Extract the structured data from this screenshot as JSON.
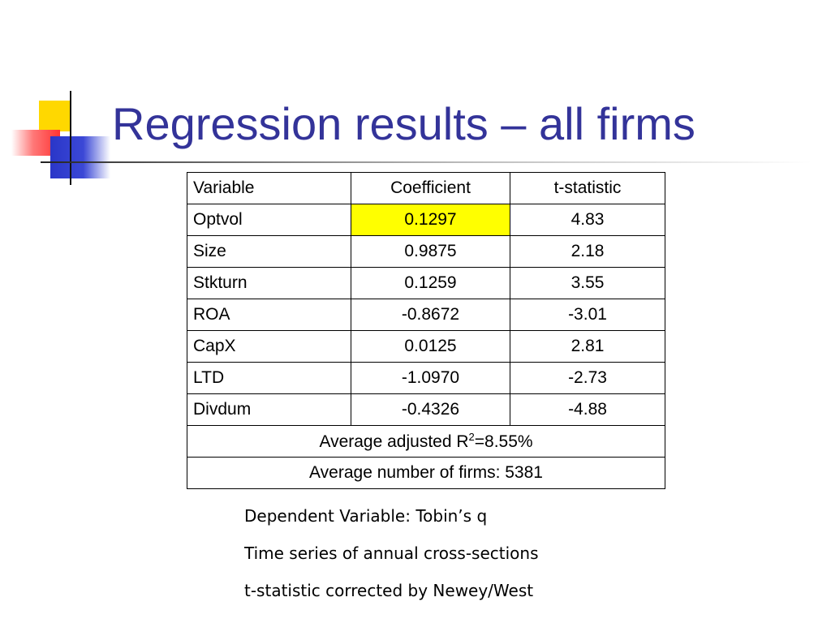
{
  "slide": {
    "title": "Regression results – all firms"
  },
  "table": {
    "headers": [
      "Variable",
      "Coefficient",
      "t-statistic"
    ],
    "rows": [
      {
        "variable": "Optvol",
        "coefficient": "0.1297",
        "t_statistic": "4.83",
        "highlight": true
      },
      {
        "variable": "Size",
        "coefficient": "0.9875",
        "t_statistic": "2.18"
      },
      {
        "variable": "Stkturn",
        "coefficient": "0.1259",
        "t_statistic": "3.55"
      },
      {
        "variable": "ROA",
        "coefficient": "-0.8672",
        "t_statistic": "-3.01"
      },
      {
        "variable": "CapX",
        "coefficient": "0.0125",
        "t_statistic": "2.81"
      },
      {
        "variable": "LTD",
        "coefficient": "-1.0970",
        "t_statistic": "-2.73"
      },
      {
        "variable": "Divdum",
        "coefficient": "-0.4326",
        "t_statistic": "-4.88"
      }
    ],
    "r2_prefix": "Average adjusted R",
    "r2_superscript": "2",
    "r2_suffix": "=8.55%",
    "firms_line": "Average number of firms: 5381",
    "highlight_color": "#ffff00"
  },
  "notes": [
    "Dependent Variable: Tobin’s q",
    "Time series of annual cross-sections",
    "t-statistic corrected by Newey/West"
  ],
  "colors": {
    "title": "#333399",
    "logo_yellow": "#ffd800",
    "logo_red": "#ff3333",
    "logo_blue": "#2a36c8"
  }
}
